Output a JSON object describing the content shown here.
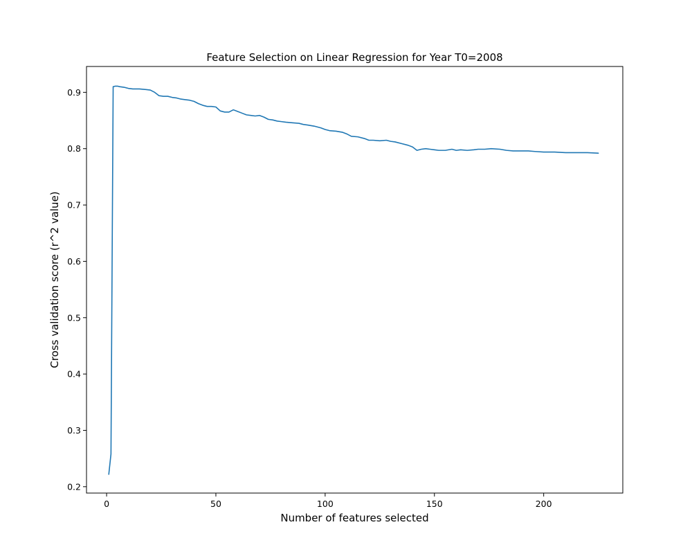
{
  "chart_data": {
    "type": "line",
    "title": "Feature Selection on Linear Regression for Year T0=2008",
    "xlabel": "Number of features selected",
    "ylabel": "Cross validation score (r^2 value)",
    "xlim": [
      -9.2,
      236.2
    ],
    "ylim": [
      0.1887,
      0.9459
    ],
    "xticks": [
      0,
      50,
      100,
      150,
      200
    ],
    "yticks": [
      0.2,
      0.3,
      0.4,
      0.5,
      0.6,
      0.7,
      0.8,
      0.9
    ],
    "xtick_labels": [
      "0",
      "50",
      "100",
      "150",
      "200"
    ],
    "ytick_labels": [
      "0.2",
      "0.3",
      "0.4",
      "0.5",
      "0.6",
      "0.7",
      "0.8",
      "0.9"
    ],
    "grid": false,
    "series": [
      {
        "color": "#1f77b4",
        "x": [
          1,
          2,
          3,
          4,
          5,
          6,
          8,
          10,
          12,
          15,
          18,
          20,
          22,
          24,
          26,
          28,
          30,
          32,
          34,
          36,
          38,
          40,
          42,
          44,
          46,
          48,
          50,
          52,
          54,
          56,
          58,
          60,
          62,
          64,
          66,
          68,
          70,
          72,
          74,
          76,
          78,
          80,
          82,
          85,
          88,
          90,
          92,
          95,
          98,
          100,
          102,
          105,
          108,
          110,
          112,
          115,
          118,
          120,
          122,
          125,
          128,
          130,
          132,
          135,
          138,
          140,
          142,
          144,
          146,
          148,
          150,
          152,
          155,
          158,
          160,
          162,
          165,
          168,
          170,
          173,
          176,
          180,
          183,
          186,
          190,
          193,
          196,
          200,
          205,
          210,
          215,
          220,
          225
        ],
        "y": [
          0.222,
          0.258,
          0.91,
          0.911,
          0.911,
          0.91,
          0.909,
          0.907,
          0.906,
          0.906,
          0.905,
          0.904,
          0.9,
          0.894,
          0.893,
          0.893,
          0.891,
          0.89,
          0.888,
          0.887,
          0.886,
          0.884,
          0.88,
          0.877,
          0.875,
          0.875,
          0.874,
          0.867,
          0.865,
          0.865,
          0.869,
          0.866,
          0.863,
          0.86,
          0.859,
          0.858,
          0.859,
          0.856,
          0.852,
          0.851,
          0.849,
          0.848,
          0.847,
          0.846,
          0.845,
          0.843,
          0.842,
          0.84,
          0.837,
          0.834,
          0.832,
          0.831,
          0.829,
          0.826,
          0.822,
          0.821,
          0.818,
          0.815,
          0.815,
          0.814,
          0.815,
          0.813,
          0.812,
          0.809,
          0.806,
          0.803,
          0.797,
          0.799,
          0.8,
          0.799,
          0.798,
          0.797,
          0.797,
          0.799,
          0.797,
          0.798,
          0.797,
          0.798,
          0.799,
          0.799,
          0.8,
          0.799,
          0.797,
          0.796,
          0.796,
          0.796,
          0.795,
          0.794,
          0.794,
          0.793,
          0.793,
          0.793,
          0.792
        ]
      }
    ]
  }
}
